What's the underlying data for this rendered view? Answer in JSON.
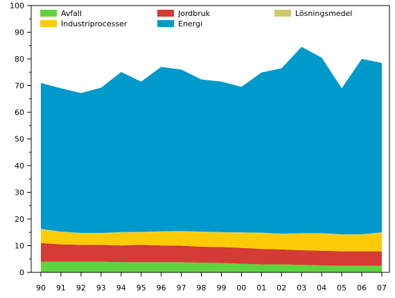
{
  "chart_data": {
    "type": "area",
    "stacked": true,
    "x": [
      "90",
      "91",
      "92",
      "93",
      "94",
      "95",
      "96",
      "97",
      "98",
      "99",
      "00",
      "01",
      "02",
      "03",
      "04",
      "05",
      "06",
      "07"
    ],
    "ylim": [
      0,
      100
    ],
    "y_ticks": [
      0,
      10,
      20,
      30,
      40,
      50,
      60,
      70,
      80,
      90,
      100
    ],
    "series": [
      {
        "name": "Avfall",
        "color": "#5fd33f",
        "values": [
          4,
          4,
          4,
          4,
          3.8,
          3.8,
          3.8,
          3.8,
          3.6,
          3.5,
          3.2,
          3,
          3,
          2.8,
          2.6,
          2.5,
          2.5,
          2.5
        ]
      },
      {
        "name": "Jordbruk",
        "color": "#d33b35",
        "values": [
          7,
          6.5,
          6.3,
          6.3,
          6.3,
          6.5,
          6.3,
          6.2,
          6,
          6,
          6,
          5.8,
          5.6,
          5.5,
          5.5,
          5.4,
          5.4,
          5.4
        ]
      },
      {
        "name": "Industriprocesser",
        "color": "#fbcc06",
        "values": [
          5,
          4.5,
          4.2,
          4.2,
          4.7,
          4.6,
          5,
          5.2,
          5.4,
          5.3,
          5.5,
          5.8,
          5.6,
          6.1,
          6.3,
          6.1,
          6.1,
          6.8
        ]
      },
      {
        "name": "Lösningsmedel",
        "color": "#cccc66",
        "values": [
          0.3,
          0.3,
          0.3,
          0.3,
          0.3,
          0.3,
          0.3,
          0.3,
          0.3,
          0.3,
          0.3,
          0.3,
          0.3,
          0.3,
          0.3,
          0.3,
          0.3,
          0.3
        ]
      },
      {
        "name": "Energi",
        "color": "#0099cc",
        "values": [
          54.7,
          53.7,
          52.4,
          54.4,
          60,
          56.3,
          61.6,
          60.5,
          57,
          56.4,
          54.5,
          60,
          62,
          69.8,
          65.8,
          54.7,
          65.7,
          63.5
        ]
      }
    ],
    "legend": {
      "placement": "top",
      "columns": [
        [
          "Avfall",
          "Industriprocesser"
        ],
        [
          "Jordbruk",
          "Energi"
        ],
        [
          "Lösningsmedel"
        ]
      ]
    },
    "grid": false
  }
}
